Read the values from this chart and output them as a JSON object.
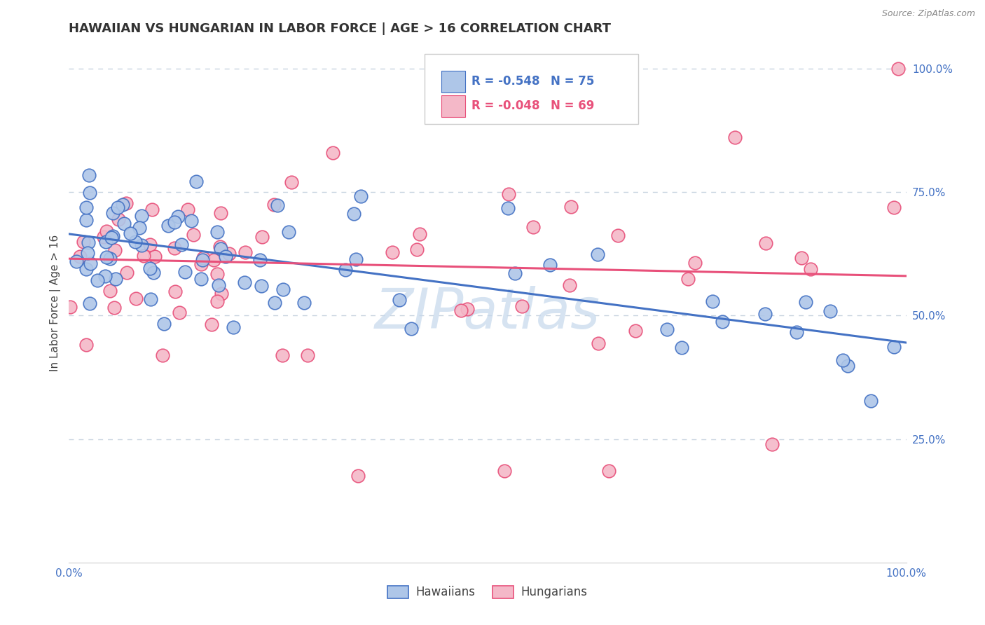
{
  "title": "HAWAIIAN VS HUNGARIAN IN LABOR FORCE | AGE > 16 CORRELATION CHART",
  "source_text": "Source: ZipAtlas.com",
  "ylabel": "In Labor Force | Age > 16",
  "xlim": [
    0.0,
    1.0
  ],
  "ylim": [
    0.0,
    1.05
  ],
  "legend_R1": "R = -0.548",
  "legend_N1": "N = 75",
  "legend_R2": "R = -0.048",
  "legend_N2": "N = 69",
  "hawaiian_color": "#aec6e8",
  "hungarian_color": "#f4b8c8",
  "line_color_hawaiian": "#4472c4",
  "line_color_hungarian": "#e8507a",
  "watermark_color": "#c5d8ec",
  "background_color": "#ffffff",
  "grid_color": "#c8d4e0",
  "tick_label_color": "#4472c4",
  "title_color": "#333333",
  "slope_hawaiian": -0.22,
  "intercept_hawaiian": 0.665,
  "slope_hungarian": -0.035,
  "intercept_hungarian": 0.615
}
